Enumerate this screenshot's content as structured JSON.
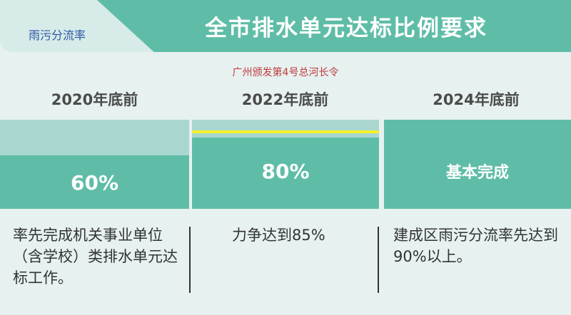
{
  "header": {
    "tag": "雨污分流率",
    "title": "全市排水单元达标比例要求",
    "subtitle": "广州颁发第4号总河长令"
  },
  "columns": [
    {
      "year": "2020年底前",
      "value": "60%",
      "fill_percent": 60,
      "description": "率先完成机关事业单位（含学校）类排水单元达标工作。"
    },
    {
      "year": "2022年底前",
      "value": "80%",
      "fill_percent": 80,
      "marker_percent": 85,
      "description": "力争达到85%"
    },
    {
      "year": "2024年底前",
      "value": "基本完成",
      "fill_percent": 100,
      "description": "建成区雨污分流率先达到90%以上。"
    }
  ],
  "colors": {
    "accent": "#5fbda7",
    "track": "#a9d7cf",
    "marker": "#f5f029",
    "subtitle": "#c0393c",
    "tag": "#2f57a6"
  }
}
